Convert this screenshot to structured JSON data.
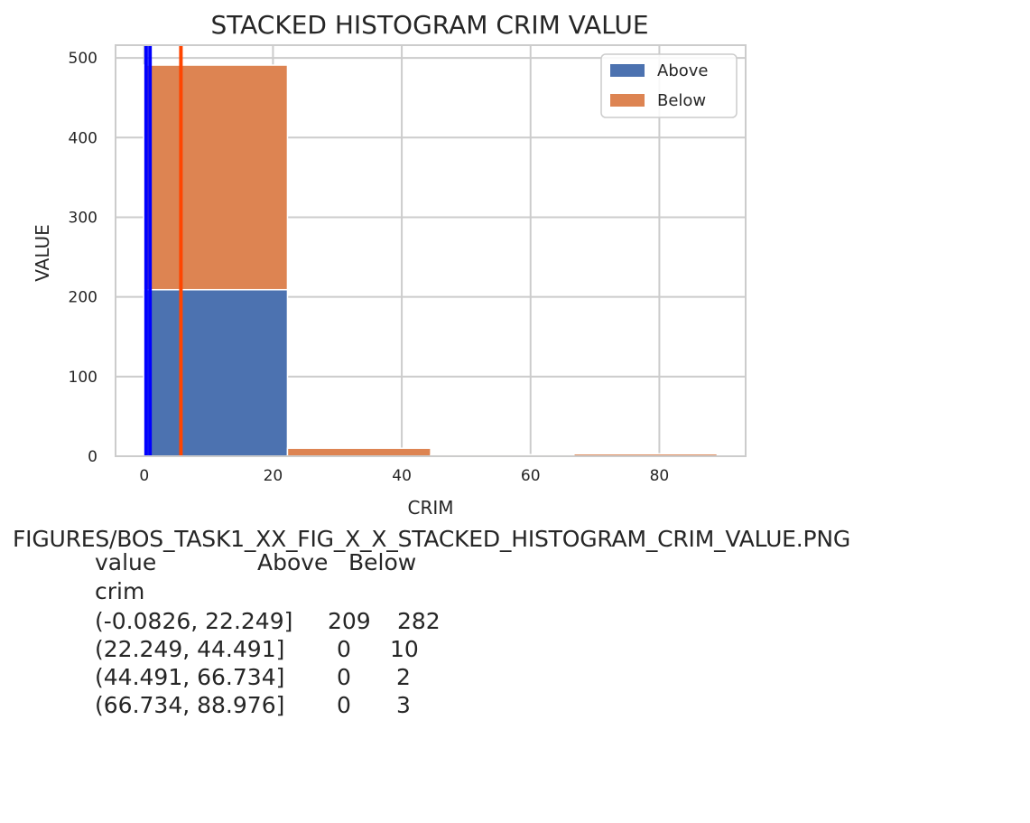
{
  "chart_data": {
    "type": "bar",
    "stacked": true,
    "title": "STACKED HISTOGRAM CRIM VALUE",
    "xlabel": "CRIM",
    "ylabel": "VALUE",
    "xlim": [
      -4.45,
      93.4
    ],
    "ylim": [
      0,
      516
    ],
    "xticks": [
      0,
      20,
      40,
      60,
      80
    ],
    "yticks": [
      0,
      100,
      200,
      300,
      400,
      500
    ],
    "grid": true,
    "legend_position": "top-right",
    "bin_edges": [
      -0.0826,
      22.249,
      44.491,
      66.734,
      88.976
    ],
    "series": [
      {
        "name": "Above",
        "color": "#4c72b0",
        "values": [
          209,
          0,
          0,
          0
        ]
      },
      {
        "name": "Below",
        "color": "#dd8452",
        "values": [
          282,
          10,
          2,
          3
        ]
      }
    ],
    "vertical_lines": [
      {
        "x": 0.3,
        "color": "#0000ff"
      },
      {
        "x": 0.9,
        "color": "#0000ff"
      },
      {
        "x": 5.7,
        "color": "#ff4500"
      }
    ]
  },
  "caption": {
    "path": "FIGURES/BOS_TASK1_XX_FIG_X_X_STACKED_HISTOGRAM_CRIM_VALUE.PNG",
    "table": {
      "header": [
        "value",
        "Above",
        "Below"
      ],
      "index_name": "crim",
      "rows": [
        {
          "label": "(-0.0826, 22.249]",
          "above": "209",
          "below": "282"
        },
        {
          "label": "(22.249, 44.491]",
          "above": "0",
          "below": "10"
        },
        {
          "label": "(44.491, 66.734]",
          "above": "0",
          "below": "2"
        },
        {
          "label": "(66.734, 88.976]",
          "above": "0",
          "below": "3"
        }
      ]
    }
  }
}
